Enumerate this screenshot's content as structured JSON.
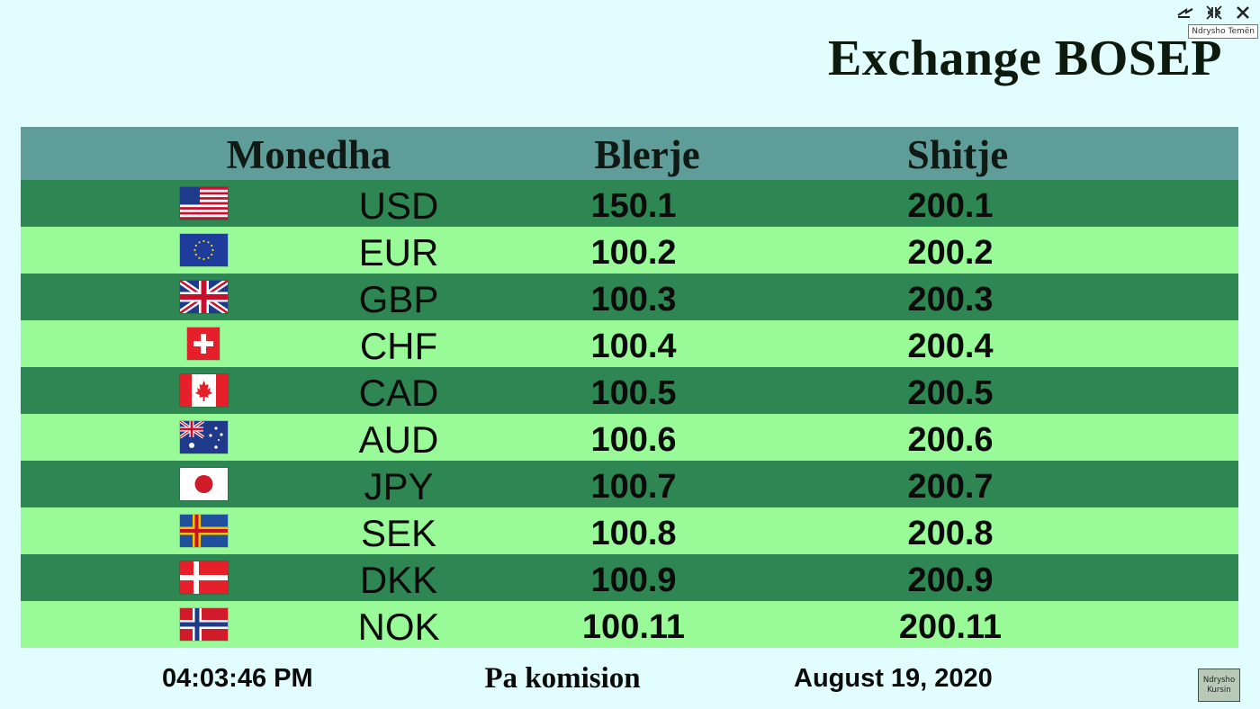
{
  "window_controls": {
    "theme_icon": "swap-arrows-icon",
    "restore_icon": "shrink-icon",
    "close_icon": "close-icon",
    "tooltip": "Ndrysho Temën"
  },
  "app_title": "Exchange BOSEP",
  "table": {
    "headers": {
      "currency": "Monedha",
      "buy": "Blerje",
      "sell": "Shitje"
    },
    "rows": [
      {
        "flag": "flag-us-icon",
        "code": "USD",
        "buy": "150.1",
        "sell": "200.1"
      },
      {
        "flag": "flag-eu-icon",
        "code": "EUR",
        "buy": "100.2",
        "sell": "200.2"
      },
      {
        "flag": "flag-gb-icon",
        "code": "GBP",
        "buy": "100.3",
        "sell": "200.3"
      },
      {
        "flag": "flag-ch-icon",
        "code": "CHF",
        "buy": "100.4",
        "sell": "200.4"
      },
      {
        "flag": "flag-ca-icon",
        "code": "CAD",
        "buy": "100.5",
        "sell": "200.5"
      },
      {
        "flag": "flag-au-icon",
        "code": "AUD",
        "buy": "100.6",
        "sell": "200.6"
      },
      {
        "flag": "flag-jp-icon",
        "code": "JPY",
        "buy": "100.7",
        "sell": "200.7"
      },
      {
        "flag": "flag-se-icon",
        "code": "SEK",
        "buy": "100.8",
        "sell": "200.8"
      },
      {
        "flag": "flag-dk-icon",
        "code": "DKK",
        "buy": "100.9",
        "sell": "200.9"
      },
      {
        "flag": "flag-no-icon",
        "code": "NOK",
        "buy": "100.11",
        "sell": "200.11"
      }
    ]
  },
  "footer": {
    "time": "04:03:46 PM",
    "commission": "Pa komision",
    "date": "August 19, 2020",
    "change_rate_button": [
      "Ndrysho",
      "Kursin"
    ]
  },
  "colors": {
    "background": "#e1fdfd",
    "header": "#5e9d99",
    "row_dark": "#2e8653",
    "row_light": "#98fb98"
  }
}
